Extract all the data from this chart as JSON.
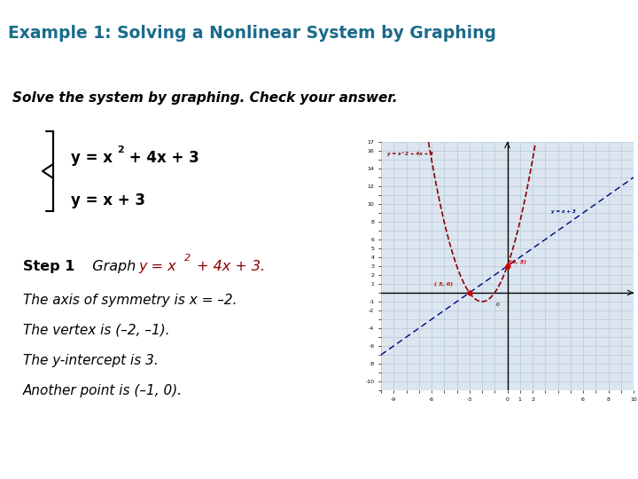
{
  "title": "Example 1: Solving a Nonlinear System by Graphing",
  "title_color": "#1a6b8a",
  "title_bg": "#d6eaf0",
  "subtitle": "Solve the system by graphing. Check your answer.",
  "eq1a": "y = x",
  "eq1b": "2",
  "eq1c": " + 4x + 3",
  "eq2": "y = x + 3",
  "step_lines": [
    "The axis of symmetry is x = –2.",
    "The vertex is (–2, –1).",
    "The y-intercept is 3.",
    "Another point is (–1, 0)."
  ],
  "graph_xlim": [
    -10,
    10
  ],
  "graph_ylim": [
    -11,
    17
  ],
  "parabola_color": "#8b0000",
  "line_color": "#00007f",
  "point1": [
    -3,
    0
  ],
  "point2": [
    0,
    3
  ],
  "point_color": "#cc0000",
  "label1": "( 3, 0)",
  "label2": "(0, 3)",
  "bg_color": "#ffffff",
  "text_color": "#000000",
  "graph_bg": "#dce6f0",
  "grid_color": "#b8c8d8"
}
